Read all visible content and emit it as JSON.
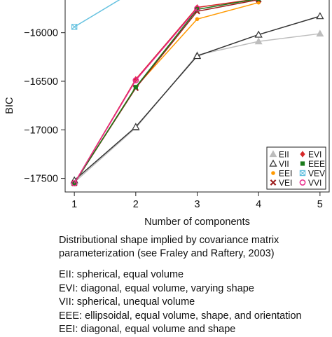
{
  "chart_data": {
    "type": "line",
    "title": "",
    "xlabel": "Number of components",
    "ylabel": "BIC",
    "x": [
      1,
      2,
      3,
      4,
      5
    ],
    "xlim": [
      0.85,
      5.15
    ],
    "ylim": [
      -17640,
      -15620
    ],
    "yticks": [
      -16000,
      -16500,
      -17000,
      -17500
    ],
    "ytick_labels": [
      "−16000",
      "−16500",
      "−17000",
      "−17500"
    ],
    "xtick_labels": [
      "1",
      "2",
      "3",
      "4",
      "5"
    ],
    "grid": false,
    "legend_position": "bottom-right",
    "series": [
      {
        "name": "EII",
        "color": "#bdbdbd",
        "marker": "triangle-filled",
        "values": [
          -17540,
          -16980,
          -16230,
          -16090,
          -16010
        ]
      },
      {
        "name": "VII",
        "color": "#333333",
        "marker": "triangle-open",
        "values": [
          -17520,
          -16970,
          -16240,
          -16020,
          -15830
        ]
      },
      {
        "name": "EEI",
        "color": "#ff9900",
        "marker": "dot",
        "values": [
          -17550,
          -16560,
          -15860,
          -15690,
          null
        ]
      },
      {
        "name": "VEI",
        "color": "#9b1b1b",
        "marker": "x",
        "values": [
          -17550,
          -16570,
          -15780,
          -15660,
          null
        ]
      },
      {
        "name": "EVI",
        "color": "#d62728",
        "marker": "diamond",
        "values": [
          -17550,
          -16480,
          -15740,
          -15650,
          null
        ]
      },
      {
        "name": "EEE",
        "color": "#1a7a1a",
        "marker": "square",
        "values": [
          -17550,
          -16560,
          -15760,
          -15650,
          null
        ]
      },
      {
        "name": "VEV",
        "color": "#66c2e0",
        "marker": "boxed-x",
        "values": [
          -15940,
          -15560,
          null,
          null,
          null
        ]
      },
      {
        "name": "VVI",
        "color": "#e8298a",
        "marker": "circle-open",
        "values": [
          -17550,
          -16490,
          -15750,
          null,
          null
        ]
      }
    ]
  },
  "caption": {
    "line1": "Distributional shape implied by covariance matrix",
    "line2": "parameterization (see Fraley and Raftery, 2003)"
  },
  "key_lines": [
    "EII: spherical, equal volume",
    "EVI: diagonal, equal volume, varying shape",
    "VII: spherical, unequal volume",
    "EEE: ellipsoidal, equal volume, shape, and orientation",
    "EEI: diagonal, equal volume and shape"
  ]
}
